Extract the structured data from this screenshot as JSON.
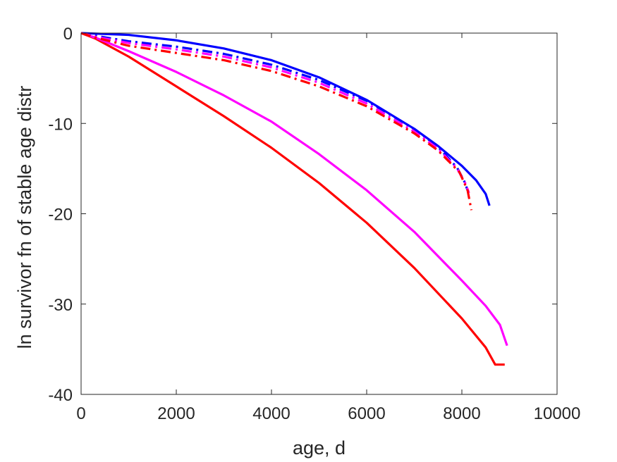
{
  "chart_data": {
    "type": "line",
    "title": "",
    "xlabel": "age, d",
    "ylabel": "ln survivor fn of stable age distr",
    "xlim": [
      0,
      10000
    ],
    "ylim": [
      -40,
      0
    ],
    "xticks": [
      0,
      2000,
      4000,
      6000,
      8000,
      10000
    ],
    "yticks": [
      -40,
      -30,
      -20,
      -10,
      0
    ],
    "xtick_labels": [
      "0",
      "2000",
      "4000",
      "6000",
      "8000",
      "10000"
    ],
    "ytick_labels": [
      "-40",
      "-30",
      "-20",
      "-10",
      "0"
    ],
    "grid": false,
    "legend": "none",
    "series": [
      {
        "color": "#ff0000",
        "style": "solid",
        "width": 3.2,
        "x": [
          0,
          300,
          1000,
          2000,
          3000,
          4000,
          5000,
          6000,
          7000,
          8000,
          8500,
          8700,
          8900
        ],
        "y": [
          0,
          -0.6,
          -2.6,
          -5.9,
          -9.2,
          -12.7,
          -16.6,
          -21.0,
          -26.0,
          -31.6,
          -34.8,
          -36.7,
          -36.7
        ]
      },
      {
        "color": "#ff00ff",
        "style": "solid",
        "width": 3.2,
        "x": [
          0,
          300,
          1000,
          2000,
          3000,
          4000,
          5000,
          6000,
          7000,
          8000,
          8500,
          8800,
          8950
        ],
        "y": [
          0,
          -0.5,
          -2.0,
          -4.3,
          -6.9,
          -9.8,
          -13.4,
          -17.4,
          -22.0,
          -27.4,
          -30.2,
          -32.3,
          -34.6
        ]
      },
      {
        "color": "#0000ff",
        "style": "solid",
        "width": 3.2,
        "x": [
          0,
          1000,
          2000,
          3000,
          4000,
          5000,
          6000,
          7000,
          7500,
          8000,
          8300,
          8500,
          8580
        ],
        "y": [
          0,
          -0.2,
          -0.8,
          -1.7,
          -3.0,
          -4.9,
          -7.4,
          -10.6,
          -12.5,
          -14.7,
          -16.3,
          -17.8,
          -19.1
        ]
      },
      {
        "color": "#0000ff",
        "style": "dashdot",
        "width": 3.2,
        "x": [
          0,
          300,
          1000,
          2000,
          3000,
          4000,
          5000,
          6000,
          7000,
          7500,
          7900,
          8050,
          8120
        ],
        "y": [
          0,
          -0.3,
          -0.9,
          -1.5,
          -2.3,
          -3.5,
          -5.2,
          -7.5,
          -10.6,
          -12.6,
          -14.9,
          -16.4,
          -17.4
        ]
      },
      {
        "color": "#ff00ff",
        "style": "dashdot",
        "width": 3.2,
        "x": [
          0,
          300,
          1000,
          2000,
          3000,
          4000,
          5000,
          6000,
          7000,
          7500,
          7900,
          8070,
          8150
        ],
        "y": [
          0,
          -0.4,
          -1.1,
          -1.8,
          -2.6,
          -3.8,
          -5.5,
          -7.8,
          -10.9,
          -12.8,
          -15.0,
          -16.6,
          -17.7
        ]
      },
      {
        "color": "#ff0000",
        "style": "dashdot",
        "width": 3.2,
        "x": [
          0,
          300,
          1000,
          2000,
          3000,
          4000,
          5000,
          6000,
          7000,
          7500,
          7950,
          8120,
          8200
        ],
        "y": [
          0,
          -0.5,
          -1.4,
          -2.2,
          -3.0,
          -4.2,
          -5.9,
          -8.1,
          -11.1,
          -13.0,
          -15.4,
          -17.4,
          -19.6
        ]
      }
    ]
  }
}
